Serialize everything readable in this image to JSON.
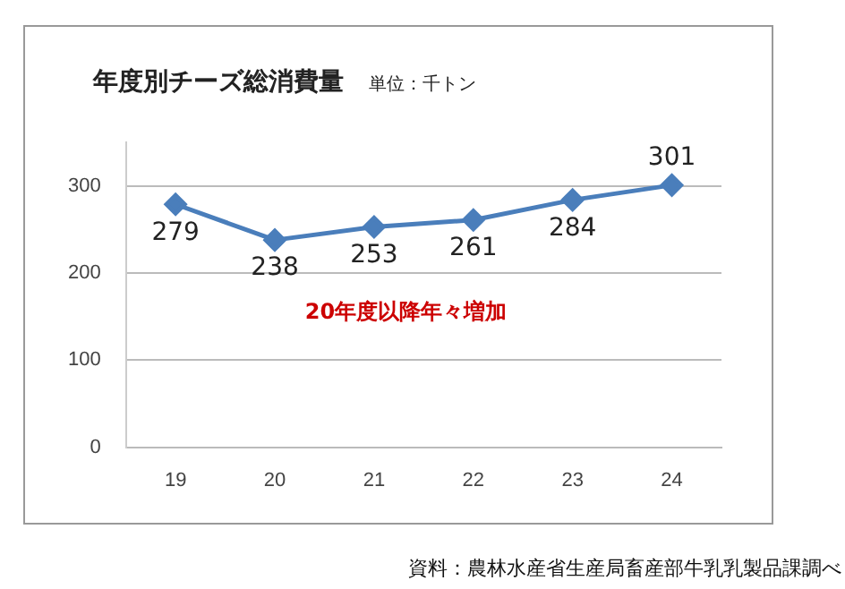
{
  "chart_data": {
    "type": "line",
    "title": "年度別チーズ総消費量",
    "subtitle": "単位：千トン",
    "categories": [
      "19",
      "20",
      "21",
      "22",
      "23",
      "24"
    ],
    "series": [
      {
        "color": "#4a7ebb",
        "values": [
          279,
          238,
          253,
          261,
          284,
          301
        ]
      }
    ],
    "ylim": [
      0,
      350
    ],
    "yticks": [
      0,
      100,
      200,
      300
    ],
    "grid": "y",
    "legend": false,
    "marker": "diamond",
    "line_style": "solid",
    "data_labels": true,
    "annotations": [
      "20年度以降年々増加",
      "資料：農林水産省生産局畜産部牛乳乳製品課調べ"
    ]
  }
}
